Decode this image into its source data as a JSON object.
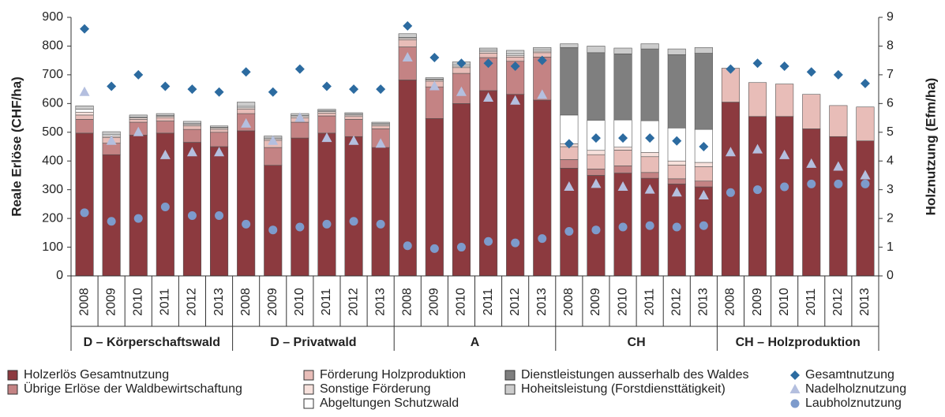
{
  "chart_data": {
    "type": "bar",
    "y_label": "Reale Erlöse (CHF/ha)",
    "y2_label": "Holznutzung (Efm/ha)",
    "groups": [
      {
        "name": "D – Körperschaftswald",
        "categories": [
          "2008",
          "2009",
          "2010",
          "2011",
          "2012",
          "2013"
        ]
      },
      {
        "name": "D – Privatwald",
        "categories": [
          "2008",
          "2009",
          "2010",
          "2011",
          "2012",
          "2013"
        ]
      },
      {
        "name": "A",
        "categories": [
          "2008",
          "2009",
          "2010",
          "2011",
          "2012",
          "2013"
        ]
      },
      {
        "name": "CH",
        "categories": [
          "2008",
          "2009",
          "2010",
          "2011",
          "2012",
          "2013"
        ]
      },
      {
        "name": "CH – Holzproduktion",
        "categories": [
          "2008",
          "2009",
          "2010",
          "2011",
          "2012",
          "2013"
        ]
      }
    ],
    "ylim": [
      0,
      900
    ],
    "yticks": [
      0,
      100,
      200,
      300,
      400,
      500,
      600,
      700,
      800,
      900
    ],
    "y2lim": [
      0,
      9
    ],
    "y2ticks": [
      0,
      1,
      2,
      3,
      4,
      5,
      6,
      7,
      8,
      9
    ],
    "series": [
      {
        "name": "Holzerlös Gesamtnutzung",
        "color": "#8c3a3f",
        "values": [
          497,
          422,
          490,
          497,
          465,
          450,
          505,
          385,
          480,
          497,
          485,
          447,
          682,
          548,
          600,
          645,
          632,
          612,
          375,
          350,
          358,
          340,
          320,
          310,
          605,
          555,
          555,
          512,
          485,
          470
        ]
      },
      {
        "name": "Übrige Erlöse der Waldbewirtschaftung",
        "color": "#c48384",
        "values": [
          48,
          40,
          45,
          42,
          45,
          50,
          60,
          62,
          55,
          60,
          60,
          65,
          115,
          110,
          105,
          115,
          115,
          150,
          30,
          22,
          25,
          20,
          18,
          20,
          0,
          0,
          0,
          0,
          0,
          0
        ]
      },
      {
        "name": "Förderung Holzproduktion",
        "color": "#e8bdb8",
        "values": [
          15,
          20,
          10,
          12,
          12,
          10,
          15,
          25,
          15,
          10,
          10,
          10,
          25,
          20,
          20,
          15,
          15,
          15,
          45,
          50,
          55,
          55,
          48,
          50,
          118,
          118,
          113,
          120,
          108,
          118
        ]
      },
      {
        "name": "Sonstige Förderung",
        "color": "#f7e1dc",
        "values": [
          10,
          5,
          5,
          5,
          5,
          5,
          5,
          5,
          5,
          5,
          5,
          5,
          5,
          5,
          5,
          5,
          5,
          5,
          10,
          15,
          10,
          15,
          14,
          15,
          0,
          0,
          0,
          0,
          0,
          0
        ]
      },
      {
        "name": "Abgeltungen Schutzwald",
        "color": "#ffffff",
        "values": [
          10,
          5,
          2,
          2,
          3,
          2,
          5,
          3,
          3,
          3,
          3,
          3,
          3,
          2,
          5,
          5,
          5,
          5,
          100,
          105,
          95,
          110,
          115,
          115,
          0,
          0,
          0,
          0,
          0,
          0
        ]
      },
      {
        "name": "Dienstleistungen ausserhalb des Waldes",
        "color": "#7f7f7f",
        "values": [
          0,
          0,
          0,
          0,
          0,
          0,
          0,
          0,
          0,
          0,
          0,
          0,
          0,
          0,
          0,
          0,
          0,
          0,
          235,
          235,
          230,
          250,
          255,
          265,
          0,
          0,
          0,
          0,
          0,
          0
        ]
      },
      {
        "name": "Hoheitsleistung (Forstdiensttätigkeit)",
        "color": "#cccccc",
        "values": [
          12,
          10,
          8,
          7,
          8,
          5,
          15,
          7,
          7,
          5,
          5,
          5,
          13,
          5,
          10,
          8,
          13,
          8,
          13,
          23,
          20,
          18,
          20,
          20,
          0,
          0,
          0,
          0,
          0,
          0
        ]
      },
      {
        "name": "Gesamtnutzung",
        "color": "#2c6ba0",
        "axis": "y2",
        "marker": "diamond",
        "values": [
          8.6,
          6.6,
          7.0,
          6.6,
          6.5,
          6.4,
          7.1,
          6.4,
          7.2,
          6.6,
          6.5,
          6.5,
          8.7,
          7.6,
          7.4,
          7.4,
          7.3,
          7.5,
          4.6,
          4.8,
          4.8,
          4.8,
          4.7,
          4.5,
          7.2,
          7.4,
          7.3,
          7.1,
          7.0,
          6.7
        ]
      },
      {
        "name": "Nadelholznutzung",
        "color": "#b4bfdf",
        "axis": "y2",
        "marker": "triangle",
        "values": [
          6.4,
          4.7,
          5.0,
          4.2,
          4.3,
          4.3,
          5.3,
          4.7,
          5.5,
          4.8,
          4.7,
          4.6,
          7.6,
          6.6,
          6.4,
          6.2,
          6.1,
          6.3,
          3.1,
          3.2,
          3.1,
          3.0,
          2.9,
          2.8,
          4.3,
          4.4,
          4.2,
          3.9,
          3.8,
          3.5
        ]
      },
      {
        "name": "Laubholznutzung",
        "color": "#7d9bcc",
        "axis": "y2",
        "marker": "circle",
        "values": [
          2.2,
          1.9,
          2.0,
          2.4,
          2.1,
          2.1,
          1.8,
          1.6,
          1.7,
          1.8,
          1.9,
          1.8,
          1.05,
          0.95,
          1.0,
          1.2,
          1.15,
          1.3,
          1.55,
          1.6,
          1.7,
          1.75,
          1.7,
          1.75,
          2.9,
          3.0,
          3.1,
          3.2,
          3.2,
          3.2
        ]
      }
    ]
  }
}
